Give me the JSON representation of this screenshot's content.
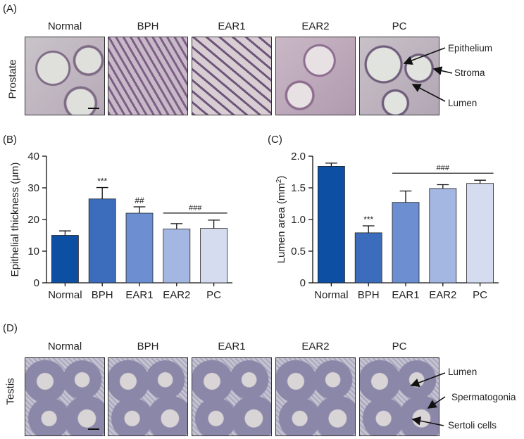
{
  "panels": {
    "A": "(A)",
    "B": "(B)",
    "C": "(C)",
    "D": "(D)"
  },
  "prostate": {
    "row_label": "Prostate",
    "columns": [
      "Normal",
      "BPH",
      "EAR1",
      "EAR2",
      "PC"
    ],
    "annotations": [
      "Epithelium",
      "Stroma",
      "Lumen"
    ]
  },
  "testis": {
    "row_label": "Testis",
    "columns": [
      "Normal",
      "BPH",
      "EAR1",
      "EAR2",
      "PC"
    ],
    "annotations": [
      "Lumen",
      "Spermatogonia",
      "Sertoli cells"
    ]
  },
  "colors": {
    "Normal": "#0d4fa3",
    "BPH": "#3c6dbd",
    "EAR1": "#6d8fd1",
    "EAR2": "#a4b6e2",
    "PC": "#d5dcf0"
  },
  "chart_data": [
    {
      "type": "bar",
      "categories": [
        "Normal",
        "BPH",
        "EAR1",
        "EAR2",
        "PC"
      ],
      "values": [
        15.0,
        26.5,
        22.0,
        17.0,
        17.2
      ],
      "errors": [
        1.4,
        3.6,
        2.0,
        1.7,
        2.6
      ],
      "sig_labels": [
        "",
        "***",
        "##",
        "",
        ""
      ],
      "bracket": {
        "from": 3,
        "to": 4,
        "label": "###"
      },
      "ylabel": "Epithelial thickness (μm)",
      "ylim": [
        0,
        40
      ],
      "yticks": [
        "0",
        "10",
        "20",
        "30",
        "40"
      ],
      "ytick_values": [
        0,
        10,
        20,
        30,
        40
      ],
      "grid": false
    },
    {
      "type": "bar",
      "categories": [
        "Normal",
        "BPH",
        "EAR1",
        "EAR2",
        "PC"
      ],
      "values": [
        1.84,
        0.79,
        1.27,
        1.49,
        1.57
      ],
      "errors": [
        0.05,
        0.11,
        0.18,
        0.06,
        0.05
      ],
      "sig_labels": [
        "",
        "***",
        "",
        "",
        ""
      ],
      "bracket": {
        "from": 2,
        "to": 4,
        "label": "###"
      },
      "ylabel": "Lumen area (mm",
      "ylabel_sup": "2",
      "ylabel_end": ")",
      "ylim": [
        0,
        2.0
      ],
      "yticks": [
        "0",
        "0.5",
        "1.0",
        "1.5",
        "2.0"
      ],
      "ytick_values": [
        0,
        0.5,
        1.0,
        1.5,
        2.0
      ],
      "grid": false
    }
  ]
}
